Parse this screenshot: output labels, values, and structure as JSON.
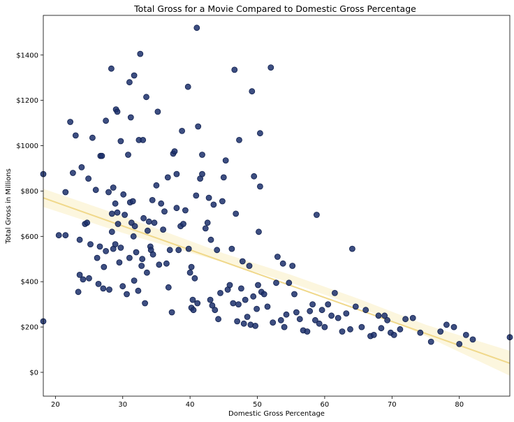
{
  "chart_data": {
    "type": "scatter",
    "title": "Total Gross for a Movie Compared to Domestic Gross Percentage",
    "xlabel": "Domestic Gross Percentage",
    "ylabel": "Total Gross in Millions",
    "xlim": [
      18.2,
      87.5
    ],
    "ylim": [
      -105,
      1575
    ],
    "x_ticks": [
      20,
      30,
      40,
      50,
      60,
      70,
      80
    ],
    "y_ticks": [
      0,
      200,
      400,
      600,
      800,
      1000,
      1200,
      1400
    ],
    "y_tick_labels": [
      "$0",
      "$200",
      "$400",
      "$600",
      "$800",
      "$1000",
      "$1200",
      "$1400"
    ],
    "grid": false,
    "legend": "none",
    "colors": {
      "points": "#1b2f6b",
      "point_edge": "#0f1f4d",
      "regression_line": "#f0d88a",
      "confidence_band": "#fcf5d8"
    },
    "regression": {
      "x": [
        18.2,
        87.5
      ],
      "y": [
        770,
        40
      ]
    },
    "confidence_band": {
      "x": [
        18.2,
        30,
        45,
        55,
        65,
        75,
        87.5
      ],
      "lower": [
        730,
        615,
        485,
        395,
        290,
        160,
        -15
      ],
      "upper": [
        810,
        690,
        525,
        430,
        325,
        210,
        95
      ]
    },
    "points": [
      [
        18.2,
        875
      ],
      [
        18.2,
        225
      ],
      [
        20.5,
        605
      ],
      [
        21.5,
        605
      ],
      [
        21.5,
        795
      ],
      [
        22.2,
        1105
      ],
      [
        22.6,
        880
      ],
      [
        23,
        1045
      ],
      [
        23.4,
        355
      ],
      [
        23.6,
        585
      ],
      [
        23.6,
        430
      ],
      [
        23.9,
        905
      ],
      [
        24.1,
        410
      ],
      [
        24.4,
        655
      ],
      [
        24.7,
        660
      ],
      [
        24.9,
        855
      ],
      [
        25,
        415
      ],
      [
        25.2,
        565
      ],
      [
        25.5,
        1035
      ],
      [
        26,
        805
      ],
      [
        26.2,
        505
      ],
      [
        26.4,
        390
      ],
      [
        26.6,
        555
      ],
      [
        26.7,
        955
      ],
      [
        26.9,
        955
      ],
      [
        27.1,
        370
      ],
      [
        27.2,
        465
      ],
      [
        27.5,
        535
      ],
      [
        27.5,
        1110
      ],
      [
        27.9,
        795
      ],
      [
        28,
        365
      ],
      [
        28.3,
        1340
      ],
      [
        28.4,
        620
      ],
      [
        28.4,
        700
      ],
      [
        28.6,
        545
      ],
      [
        28.6,
        815
      ],
      [
        28.9,
        745
      ],
      [
        28.9,
        565
      ],
      [
        29,
        1160
      ],
      [
        29.2,
        1150
      ],
      [
        29.2,
        705
      ],
      [
        29.3,
        655
      ],
      [
        29.5,
        485
      ],
      [
        29.7,
        550
      ],
      [
        29.7,
        1020
      ],
      [
        30,
        380
      ],
      [
        30.1,
        785
      ],
      [
        30.3,
        695
      ],
      [
        30.6,
        345
      ],
      [
        30.8,
        960
      ],
      [
        31,
        1280
      ],
      [
        31,
        505
      ],
      [
        31.1,
        750
      ],
      [
        31.2,
        1125
      ],
      [
        31.3,
        660
      ],
      [
        31.5,
        755
      ],
      [
        31.6,
        600
      ],
      [
        31.7,
        1310
      ],
      [
        31.7,
        405
      ],
      [
        31.8,
        645
      ],
      [
        32,
        530
      ],
      [
        32.3,
        360
      ],
      [
        32.4,
        1025
      ],
      [
        32.6,
        1405
      ],
      [
        32.8,
        470
      ],
      [
        32.9,
        500
      ],
      [
        33,
        1025
      ],
      [
        33.1,
        680
      ],
      [
        33.3,
        305
      ],
      [
        33.5,
        1215
      ],
      [
        33.6,
        440
      ],
      [
        33.7,
        625
      ],
      [
        33.9,
        665
      ],
      [
        34.1,
        555
      ],
      [
        34.2,
        540
      ],
      [
        34.4,
        760
      ],
      [
        34.5,
        520
      ],
      [
        34.7,
        660
      ],
      [
        35,
        825
      ],
      [
        35.2,
        1150
      ],
      [
        35.4,
        475
      ],
      [
        35.7,
        745
      ],
      [
        36,
        630
      ],
      [
        36.2,
        710
      ],
      [
        36.5,
        480
      ],
      [
        36.7,
        860
      ],
      [
        36.8,
        375
      ],
      [
        37,
        540
      ],
      [
        37.3,
        265
      ],
      [
        37.5,
        965
      ],
      [
        37.7,
        975
      ],
      [
        38,
        875
      ],
      [
        38,
        725
      ],
      [
        38.3,
        540
      ],
      [
        38.6,
        645
      ],
      [
        38.8,
        1065
      ],
      [
        39,
        655
      ],
      [
        39.3,
        715
      ],
      [
        39.7,
        1260
      ],
      [
        39.8,
        545
      ],
      [
        40,
        440
      ],
      [
        40.2,
        465
      ],
      [
        40.2,
        285
      ],
      [
        40.4,
        320
      ],
      [
        40.5,
        275
      ],
      [
        40.7,
        415
      ],
      [
        40.9,
        780
      ],
      [
        41,
        1520
      ],
      [
        41.1,
        305
      ],
      [
        41.2,
        1085
      ],
      [
        41.5,
        855
      ],
      [
        41.8,
        960
      ],
      [
        41.8,
        875
      ],
      [
        42.3,
        635
      ],
      [
        42.6,
        660
      ],
      [
        42.8,
        770
      ],
      [
        43,
        320
      ],
      [
        43.1,
        585
      ],
      [
        43.3,
        295
      ],
      [
        43.5,
        740
      ],
      [
        43.7,
        275
      ],
      [
        44,
        540
      ],
      [
        44.2,
        235
      ],
      [
        44.5,
        350
      ],
      [
        44.8,
        755
      ],
      [
        45,
        860
      ],
      [
        45.3,
        935
      ],
      [
        45.6,
        365
      ],
      [
        45.9,
        385
      ],
      [
        46.2,
        545
      ],
      [
        46.4,
        305
      ],
      [
        46.6,
        1335
      ],
      [
        46.8,
        700
      ],
      [
        47,
        225
      ],
      [
        47.2,
        300
      ],
      [
        47.3,
        1025
      ],
      [
        47.6,
        370
      ],
      [
        47.8,
        490
      ],
      [
        48,
        215
      ],
      [
        48.2,
        320
      ],
      [
        48.5,
        245
      ],
      [
        48.8,
        470
      ],
      [
        49,
        210
      ],
      [
        49.2,
        1240
      ],
      [
        49.4,
        335
      ],
      [
        49.5,
        865
      ],
      [
        49.7,
        205
      ],
      [
        49.9,
        280
      ],
      [
        50.1,
        385
      ],
      [
        50.2,
        620
      ],
      [
        50.4,
        820
      ],
      [
        50.4,
        1055
      ],
      [
        50.6,
        355
      ],
      [
        51,
        345
      ],
      [
        51.5,
        290
      ],
      [
        52,
        1345
      ],
      [
        52.3,
        220
      ],
      [
        52.8,
        395
      ],
      [
        53,
        510
      ],
      [
        53.5,
        230
      ],
      [
        53.8,
        480
      ],
      [
        54,
        200
      ],
      [
        54.3,
        255
      ],
      [
        54.7,
        395
      ],
      [
        55.2,
        470
      ],
      [
        55.5,
        345
      ],
      [
        55.8,
        265
      ],
      [
        56.3,
        235
      ],
      [
        56.8,
        185
      ],
      [
        57.4,
        180
      ],
      [
        57.8,
        270
      ],
      [
        58.2,
        300
      ],
      [
        58.6,
        230
      ],
      [
        58.8,
        695
      ],
      [
        59.2,
        215
      ],
      [
        59.6,
        275
      ],
      [
        60,
        200
      ],
      [
        60.5,
        300
      ],
      [
        61,
        250
      ],
      [
        61.5,
        350
      ],
      [
        62,
        240
      ],
      [
        62.6,
        180
      ],
      [
        63.2,
        260
      ],
      [
        63.8,
        190
      ],
      [
        64.1,
        545
      ],
      [
        64.6,
        290
      ],
      [
        65.5,
        200
      ],
      [
        66.1,
        275
      ],
      [
        66.8,
        160
      ],
      [
        67.3,
        165
      ],
      [
        68,
        250
      ],
      [
        68.4,
        195
      ],
      [
        68.9,
        250
      ],
      [
        69.3,
        230
      ],
      [
        69.8,
        175
      ],
      [
        70.3,
        165
      ],
      [
        71.2,
        190
      ],
      [
        72,
        235
      ],
      [
        73.1,
        240
      ],
      [
        74.2,
        175
      ],
      [
        75.8,
        135
      ],
      [
        77.2,
        180
      ],
      [
        78.1,
        210
      ],
      [
        79.2,
        200
      ],
      [
        80,
        125
      ],
      [
        81,
        165
      ],
      [
        82,
        145
      ],
      [
        87.5,
        155
      ]
    ]
  }
}
